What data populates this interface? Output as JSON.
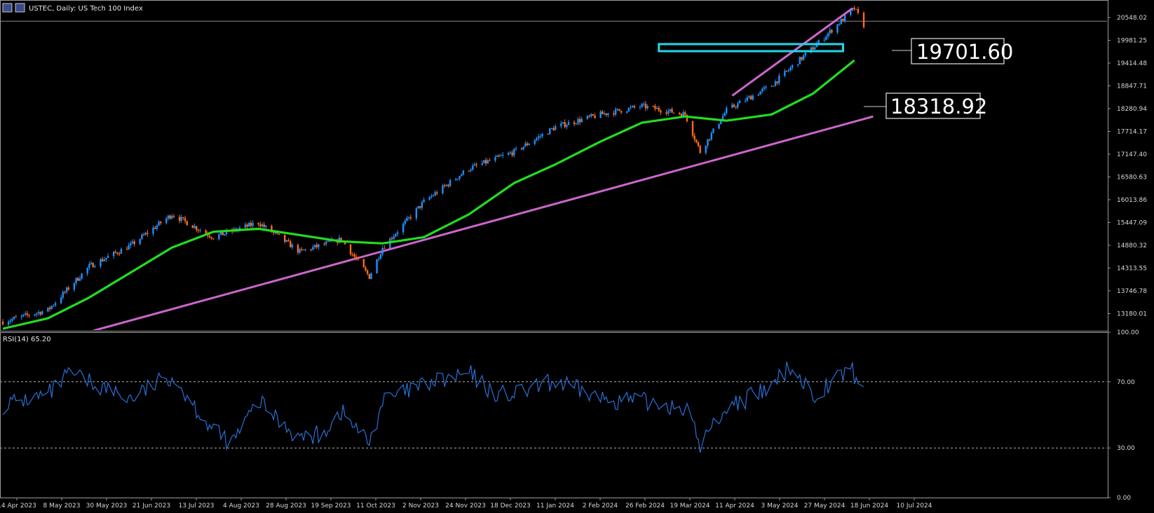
{
  "header": {
    "title": "USTEC, Daily:  US Tech 100 Index"
  },
  "rsi_panel": {
    "label": "RSI(14) 65.20"
  },
  "price_axis": {
    "ticks": [
      "20548.02",
      "19981.25",
      "19414.48",
      "18847.71",
      "18280.94",
      "17714.17",
      "17147.40",
      "16580.63",
      "16013.86",
      "15447.09",
      "14880.32",
      "14313.55",
      "13746.78",
      "13180.01"
    ]
  },
  "rsi_axis": {
    "ticks": [
      "100.00",
      "70.00",
      "30.00",
      "0.00"
    ]
  },
  "date_axis": {
    "ticks": [
      "14 Apr 2023",
      "8 May 2023",
      "30 May 2023",
      "21 Jun 2023",
      "13 Jul 2023",
      "4 Aug 2023",
      "28 Aug 2023",
      "19 Sep 2023",
      "11 Oct 2023",
      "2 Nov 2023",
      "24 Nov 2023",
      "18 Dec 2023",
      "11 Jan 2024",
      "2 Feb 2024",
      "26 Feb 2024",
      "19 Mar 2024",
      "11 Apr 2024",
      "3 May 2024",
      "27 May 2024",
      "18 Jun 2024",
      "10 Jul 2024"
    ]
  },
  "annotations": {
    "label_high": "19701.60",
    "label_ma": "18318.92"
  },
  "colors": {
    "background": "#000000",
    "bull_candle": "#1e90ff",
    "bear_candle": "#ff6a1a",
    "moving_average": "#22dd22",
    "trendline": "#cc66cc",
    "rect_zone": "#22d7e6",
    "rsi_line": "#2a6fd6"
  },
  "chart_data": [
    {
      "type": "candlestick",
      "title": "USTEC, Daily:  US Tech 100 Index",
      "ylim": [
        12900,
        20850
      ],
      "x_range": [
        "14 Apr 2023",
        "15 Jul 2024"
      ],
      "close_path": [
        [
          "14 Apr 2023",
          13120
        ],
        [
          "8 May 2023",
          13400
        ],
        [
          "30 May 2023",
          14450
        ],
        [
          "21 Jun 2023",
          14950
        ],
        [
          "13 Jul 2023",
          15700
        ],
        [
          "4 Aug 2023",
          15150
        ],
        [
          "28 Aug 2023",
          15500
        ],
        [
          "19 Sep 2023",
          14800
        ],
        [
          "11 Oct 2023",
          15100
        ],
        [
          "26 Oct 2023",
          14200
        ],
        [
          "2 Nov 2023",
          14900
        ],
        [
          "24 Nov 2023",
          16000
        ],
        [
          "18 Dec 2023",
          16800
        ],
        [
          "11 Jan 2024",
          17200
        ],
        [
          "2 Feb 2024",
          17800
        ],
        [
          "26 Feb 2024",
          18100
        ],
        [
          "19 Mar 2024",
          18300
        ],
        [
          "11 Apr 2024",
          18100
        ],
        [
          "19 Apr 2024",
          17200
        ],
        [
          "3 May 2024",
          18200
        ],
        [
          "27 May 2024",
          18800
        ],
        [
          "18 Jun 2024",
          19700
        ],
        [
          "10 Jul 2024",
          20650
        ],
        [
          "15 Jul 2024",
          20250
        ]
      ],
      "moving_average": [
        [
          "14 Apr 2023",
          12950
        ],
        [
          "8 May 2023",
          13200
        ],
        [
          "30 May 2023",
          13700
        ],
        [
          "21 Jun 2023",
          14300
        ],
        [
          "13 Jul 2023",
          14900
        ],
        [
          "4 Aug 2023",
          15280
        ],
        [
          "28 Aug 2023",
          15350
        ],
        [
          "19 Sep 2023",
          15200
        ],
        [
          "11 Oct 2023",
          15050
        ],
        [
          "2 Nov 2023",
          15000
        ],
        [
          "24 Nov 2023",
          15150
        ],
        [
          "18 Dec 2023",
          15700
        ],
        [
          "11 Jan 2024",
          16450
        ],
        [
          "2 Feb 2024",
          16900
        ],
        [
          "26 Feb 2024",
          17450
        ],
        [
          "19 Mar 2024",
          17900
        ],
        [
          "11 Apr 2024",
          18050
        ],
        [
          "3 May 2024",
          17950
        ],
        [
          "27 May 2024",
          18100
        ],
        [
          "18 Jun 2024",
          18600
        ],
        [
          "10 Jul 2024",
          19400
        ]
      ],
      "trendline_long": [
        [
          "1 Jun 2023",
          12900
        ],
        [
          "20 Jul 2024",
          18050
        ]
      ],
      "trendline_short": [
        [
          "6 May 2024",
          18550
        ],
        [
          "9 Jul 2024",
          20650
        ]
      ],
      "zone": {
        "x_start": "28 Mar 2024",
        "x_end": "4 Jul 2024",
        "y_low": 19620,
        "y_high": 19790
      },
      "last_price_line": 20340
    },
    {
      "type": "line",
      "title": "RSI(14) 65.20",
      "ylim": [
        0,
        100
      ],
      "levels": [
        70,
        30
      ],
      "path": [
        [
          "14 Apr 2023",
          56
        ],
        [
          "8 May 2023",
          62
        ],
        [
          "20 May 2023",
          75
        ],
        [
          "30 May 2023",
          70
        ],
        [
          "21 Jun 2023",
          60
        ],
        [
          "13 Jul 2023",
          74
        ],
        [
          "4 Aug 2023",
          40
        ],
        [
          "14 Aug 2023",
          33
        ],
        [
          "28 Aug 2023",
          58
        ],
        [
          "19 Sep 2023",
          36
        ],
        [
          "30 Sep 2023",
          38
        ],
        [
          "11 Oct 2023",
          52
        ],
        [
          "26 Oct 2023",
          33
        ],
        [
          "2 Nov 2023",
          58
        ],
        [
          "24 Nov 2023",
          68
        ],
        [
          "18 Dec 2023",
          75
        ],
        [
          "31 Dec 2023",
          63
        ],
        [
          "11 Jan 2024",
          62
        ],
        [
          "2 Feb 2024",
          70
        ],
        [
          "26 Feb 2024",
          60
        ],
        [
          "19 Mar 2024",
          58
        ],
        [
          "11 Apr 2024",
          55
        ],
        [
          "19 Apr 2024",
          32
        ],
        [
          "3 May 2024",
          55
        ],
        [
          "27 May 2024",
          66
        ],
        [
          "6 Jun 2024",
          80
        ],
        [
          "18 Jun 2024",
          62
        ],
        [
          "8 Jul 2024",
          78
        ],
        [
          "15 Jul 2024",
          65.2
        ]
      ]
    }
  ]
}
